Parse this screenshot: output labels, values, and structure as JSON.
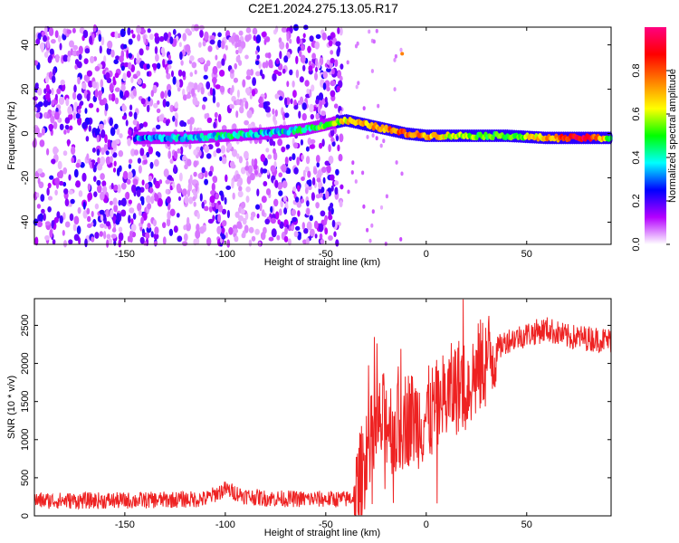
{
  "title": "C2E1.2024.275.13.05.R17",
  "chart_data": [
    {
      "type": "heatmap",
      "xlabel": "Height of straight line (km)",
      "ylabel": "Frequency (Hz)",
      "xlim": [
        -195,
        92
      ],
      "ylim": [
        -50,
        48
      ],
      "xticks": [
        -150,
        -100,
        -50,
        0,
        50
      ],
      "yticks": [
        -40,
        -20,
        0,
        20,
        40
      ],
      "colorbar": {
        "label": "Normalized spectral amplitude",
        "range": [
          0,
          1
        ],
        "ticks": [
          0.0,
          0.2,
          0.4,
          0.6,
          0.8
        ],
        "colors": [
          "#ffffff",
          "#b400ff",
          "#0000ff",
          "#00ffff",
          "#00ff00",
          "#ffff00",
          "#ff8000",
          "#ff0000",
          "#ff0080"
        ]
      },
      "ridge": {
        "x": [
          -145,
          -120,
          -100,
          -80,
          -60,
          -45,
          -40,
          -30,
          -20,
          -10,
          0,
          20,
          40,
          60,
          80,
          92
        ],
        "frequency": [
          -2,
          -2,
          -1,
          0,
          2,
          5,
          6,
          4,
          2,
          0,
          -1,
          -1,
          -1,
          -2,
          -2,
          -2
        ],
        "amplitude": [
          0.3,
          0.35,
          0.4,
          0.35,
          0.45,
          0.55,
          0.65,
          0.7,
          0.75,
          0.8,
          0.7,
          0.55,
          0.5,
          0.7,
          0.95,
          0.5
        ]
      }
    },
    {
      "type": "line",
      "xlabel": "Height of straight line (km)",
      "ylabel": "SNR (10 * v/v)",
      "xlim": [
        -195,
        92
      ],
      "ylim": [
        0,
        2850
      ],
      "xticks": [
        -150,
        -100,
        -50,
        0,
        50
      ],
      "yticks": [
        0,
        500,
        1000,
        1500,
        2000,
        2500
      ],
      "line_color": "#ee2222",
      "series": [
        {
          "x": [
            -195,
            -150,
            -110,
            -100,
            -90,
            -80,
            -60,
            -40,
            -35,
            -30,
            -25,
            -20,
            -15,
            -10,
            -5,
            0,
            5,
            10,
            15,
            20,
            30,
            40,
            50,
            60,
            70,
            80,
            92
          ],
          "y": [
            200,
            200,
            220,
            350,
            260,
            230,
            220,
            220,
            250,
            800,
            1100,
            1300,
            1100,
            1300,
            1250,
            1300,
            1400,
            1550,
            1700,
            1700,
            2050,
            2300,
            2380,
            2450,
            2350,
            2330,
            2300
          ]
        }
      ]
    }
  ]
}
